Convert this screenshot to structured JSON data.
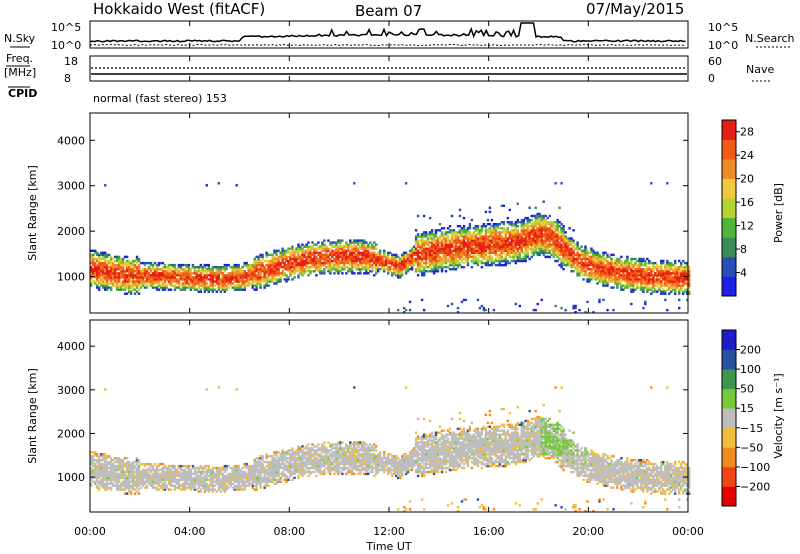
{
  "header": {
    "station": "Hokkaido West (fitACF)",
    "beam": "Beam 07",
    "date": "07/May/2015"
  },
  "top_panels": {
    "nsky_label": "N.Sky",
    "nsky_ticks": [
      "10^5",
      "10^0"
    ],
    "nsearch_label": "N.Search",
    "freq_label": "Freq.",
    "freq_unit": "[MHz]",
    "freq_ticks": [
      "18",
      "8"
    ],
    "nave_label": "Nave",
    "nave_ticks": [
      "60",
      "0"
    ],
    "cpid_label": "CPID",
    "cpid_text": "normal (fast stereo) 153"
  },
  "colors": {
    "power": [
      "#1e1ee6",
      "#2850b4",
      "#3c8c5a",
      "#50b43c",
      "#b4d232",
      "#f0c83c",
      "#f08c28",
      "#f05a14",
      "#e61e14"
    ],
    "velocity": [
      "#e60000",
      "#f04614",
      "#f08c1e",
      "#f0be3c",
      "#bebebe",
      "#78c83c",
      "#3c964b",
      "#2850a0",
      "#1e1ec8"
    ]
  },
  "chart_data": [
    {
      "type": "heatmap",
      "name": "power",
      "ylabel": "Slant Range [km]",
      "yticks": [
        "1000",
        "2000",
        "3000",
        "4000"
      ],
      "ylim": [
        200,
        4600
      ],
      "xlim": [
        0,
        24
      ],
      "colorbar_label": "Power [dB]",
      "colorbar_ticks": [
        "4",
        "8",
        "12",
        "16",
        "20",
        "24",
        "28"
      ],
      "colorbar_range": [
        0,
        30
      ]
    },
    {
      "type": "heatmap",
      "name": "velocity",
      "ylabel": "Slant Range [km]",
      "yticks": [
        "1000",
        "2000",
        "3000",
        "4000"
      ],
      "ylim": [
        200,
        4600
      ],
      "xlim": [
        0,
        24
      ],
      "colorbar_label": "Velocity [m s⁻¹]",
      "colorbar_ticks": [
        "200",
        "100",
        "50",
        "15",
        "−15",
        "−50",
        "−100",
        "−200"
      ]
    }
  ],
  "xaxis": {
    "ticks": [
      "00:00",
      "04:00",
      "08:00",
      "12:00",
      "16:00",
      "20:00",
      "00:00"
    ],
    "label": "Time UT"
  }
}
